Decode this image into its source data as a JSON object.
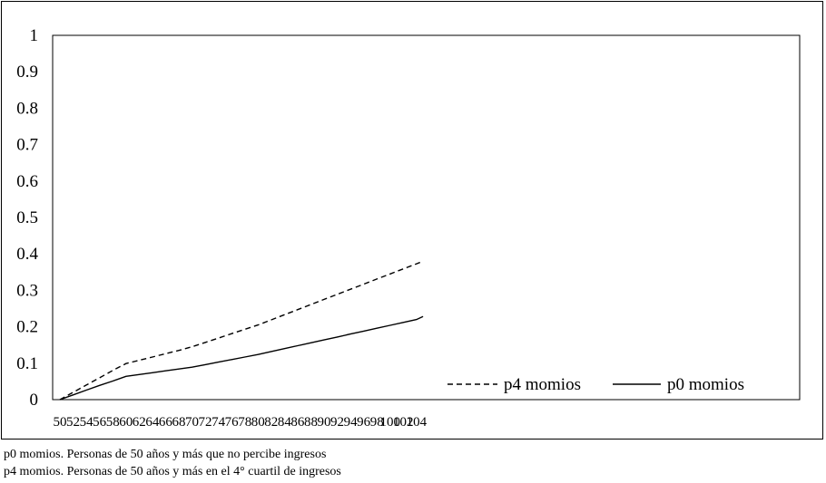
{
  "chart_data": {
    "type": "line",
    "title": "",
    "xlabel": "",
    "ylabel": "",
    "x": [
      50,
      52,
      54,
      56,
      58,
      60,
      62,
      64,
      66,
      68,
      70,
      72,
      74,
      76,
      78,
      80,
      82,
      84,
      86,
      88,
      90,
      92,
      94,
      96,
      98,
      100,
      102,
      104,
      105
    ],
    "x_tick_labels": [
      "50",
      "52",
      "54",
      "56",
      "58",
      "60",
      "62",
      "64",
      "66",
      "68",
      "70",
      "72",
      "74",
      "76",
      "78",
      "80",
      "82",
      "84",
      "86",
      "88",
      "90",
      "92",
      "94",
      "96",
      "98",
      "100",
      "102",
      "104"
    ],
    "ylim": [
      0,
      1
    ],
    "y_ticks": [
      0,
      0.1,
      0.2,
      0.3,
      0.4,
      0.5,
      0.6,
      0.7,
      0.8,
      0.9,
      1
    ],
    "y_tick_labels": [
      "0",
      "0.1",
      "0.2",
      "0.3",
      "0.4",
      "0.5",
      "0.6",
      "0.7",
      "0.8",
      "0.9",
      "1"
    ],
    "grid": false,
    "legend_position": "bottom-right",
    "series": [
      {
        "name": "p4 momios",
        "style": "dashed",
        "color": "#000000",
        "values": [
          0,
          0.02,
          0.04,
          0.06,
          0.08,
          0.099,
          0.108,
          0.117,
          0.126,
          0.135,
          0.145,
          0.157,
          0.169,
          0.181,
          0.193,
          0.205,
          0.219,
          0.233,
          0.247,
          0.261,
          0.275,
          0.289,
          0.303,
          0.317,
          0.331,
          0.345,
          0.359,
          0.373,
          0.38
        ]
      },
      {
        "name": "p0 momios",
        "style": "solid",
        "color": "#000000",
        "values": [
          0,
          0.013,
          0.026,
          0.039,
          0.051,
          0.064,
          0.069,
          0.074,
          0.079,
          0.084,
          0.089,
          0.096,
          0.103,
          0.11,
          0.117,
          0.124,
          0.132,
          0.14,
          0.148,
          0.156,
          0.164,
          0.172,
          0.18,
          0.188,
          0.196,
          0.204,
          0.212,
          0.22,
          0.228
        ]
      }
    ]
  },
  "notes": [
    "p0 momios. Personas de 50 años y más que no percibe ingresos",
    "p4 momios. Personas de 50 años y más en el 4° cuartil de ingresos"
  ]
}
